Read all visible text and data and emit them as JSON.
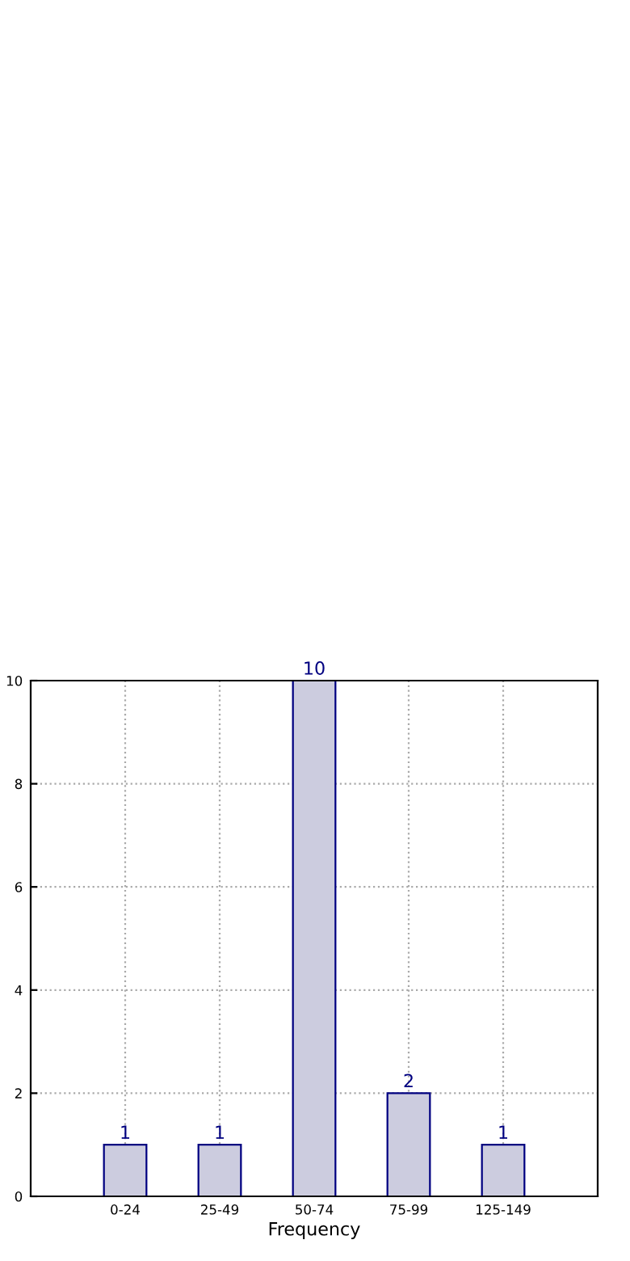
{
  "chart_data": {
    "type": "bar",
    "xlabel": "Frequency",
    "categories": [
      "0-24",
      "25-49",
      "50-74",
      "75-99",
      "125-149"
    ],
    "values": [
      1,
      1,
      10,
      2,
      1
    ],
    "color": "#ccccdf",
    "ylim": [
      0,
      10
    ],
    "yticks": [
      0,
      2,
      4,
      6,
      8,
      10
    ],
    "grid": true,
    "data_labels": true
  }
}
